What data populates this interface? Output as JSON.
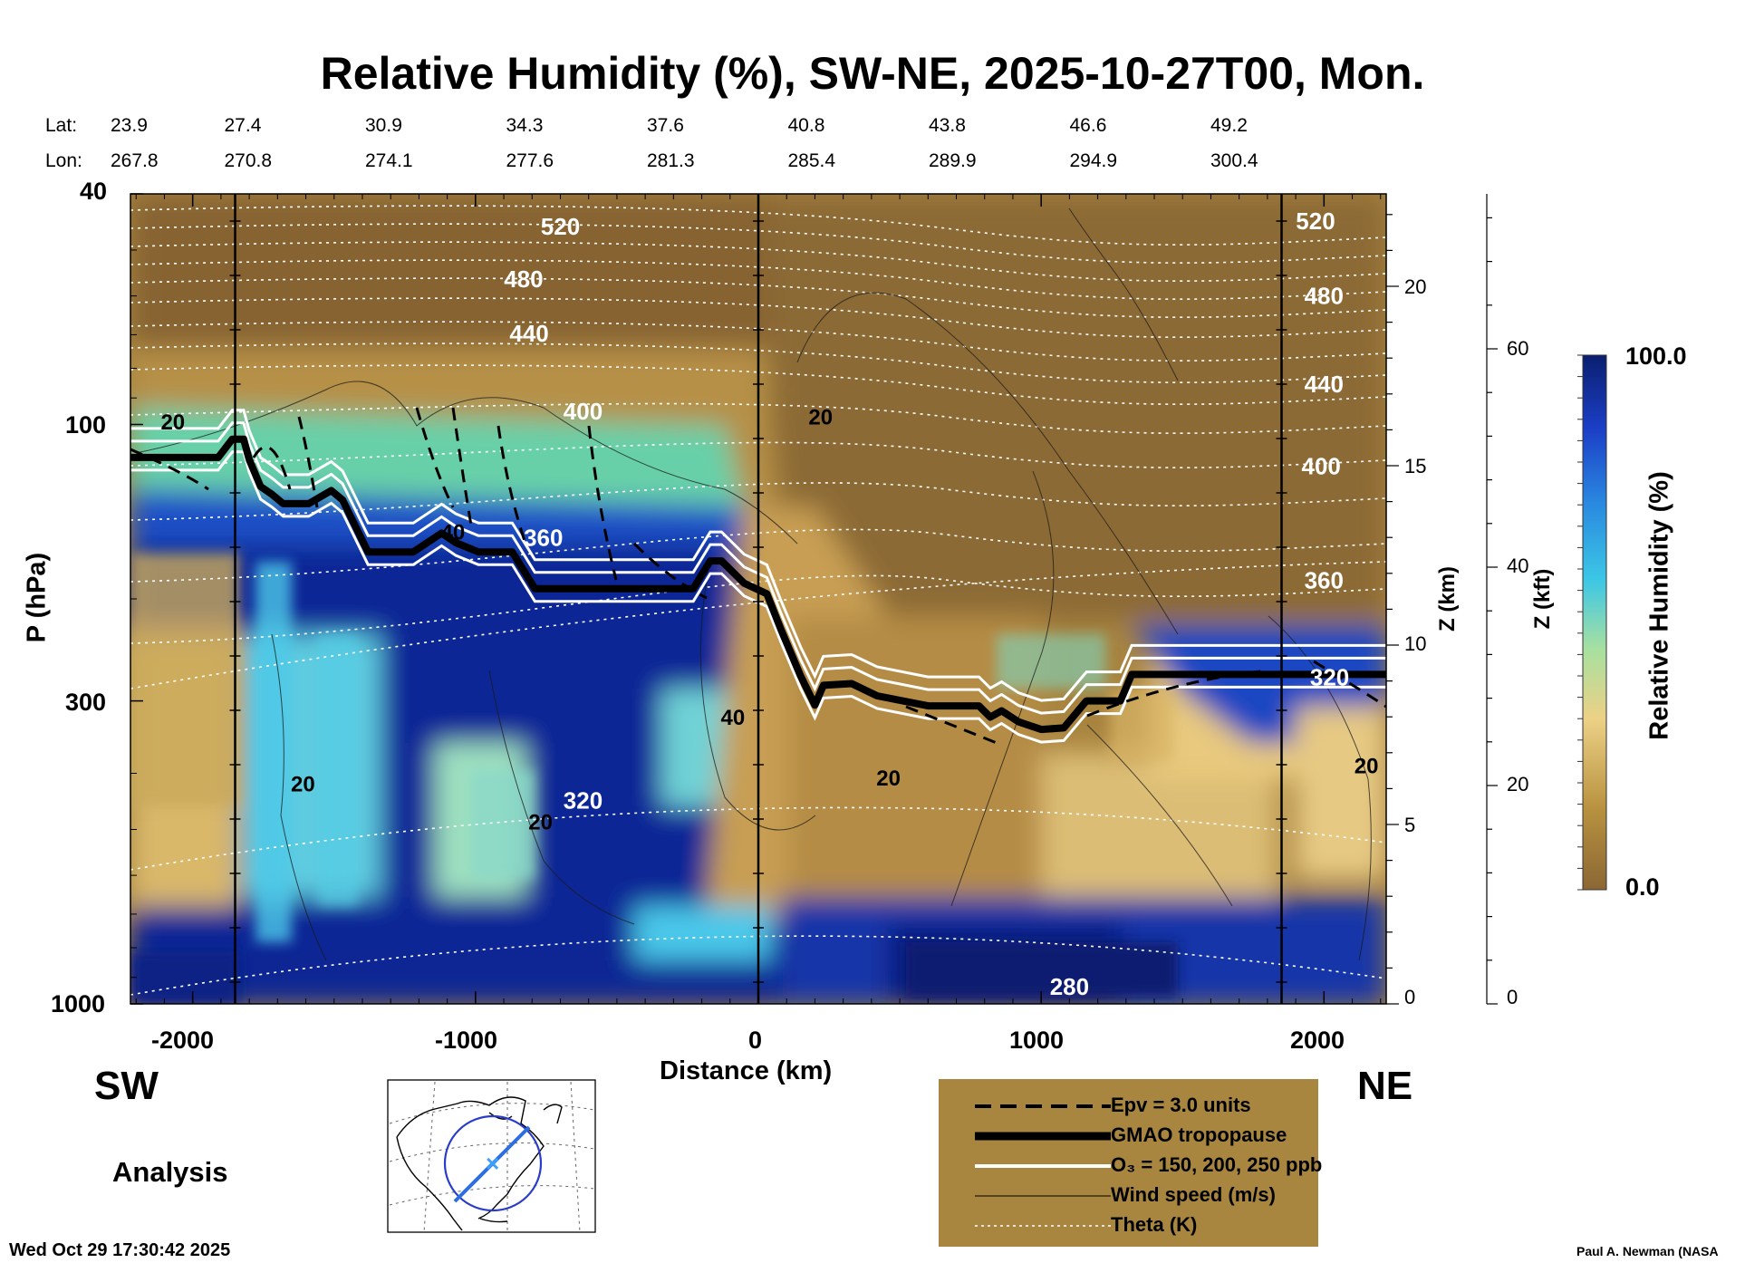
{
  "chart_data": {
    "type": "heatmap",
    "title": "Relative Humidity (%), SW-NE, 2025-10-27T00, Mon.",
    "variable": "Relative Humidity (%)",
    "xlabel": "Distance (km)",
    "ylabel": "P (hPa)",
    "y2label": "Z (km)",
    "y3label": "Z (kft)",
    "xlim": [
      -2220,
      2220
    ],
    "x_ticks": [
      -2000,
      -1000,
      0,
      1000,
      2000
    ],
    "x_tick_labels": [
      "-2000",
      "-1000",
      "0",
      "1000",
      "2000"
    ],
    "ylim": [
      1000,
      40
    ],
    "y_ticks": [
      40,
      100,
      300,
      1000
    ],
    "y_tick_labels": [
      "40",
      "100",
      "300",
      "1000"
    ],
    "z_km_ticks": [
      0,
      5,
      10,
      15,
      20
    ],
    "z_km_tick_labels": [
      "0",
      "5",
      "10",
      "15",
      "20"
    ],
    "z_kft_ticks": [
      0,
      20,
      40,
      60
    ],
    "z_kft_tick_labels": [
      "0",
      "20",
      "40",
      "60"
    ],
    "colorbar": {
      "min_label": "0.0",
      "max_label": "100.0",
      "range": [
        0,
        100
      ],
      "label": "Relative Humidity (%)"
    },
    "lat_label": "Lat:",
    "lon_label": "Lon:",
    "lat_lon": [
      {
        "lat": "23.9",
        "lon": "267.8"
      },
      {
        "lat": "27.4",
        "lon": "270.8"
      },
      {
        "lat": "30.9",
        "lon": "274.1"
      },
      {
        "lat": "34.3",
        "lon": "277.6"
      },
      {
        "lat": "37.6",
        "lon": "281.3"
      },
      {
        "lat": "40.8",
        "lon": "285.4"
      },
      {
        "lat": "43.8",
        "lon": "289.9"
      },
      {
        "lat": "46.6",
        "lon": "294.9"
      },
      {
        "lat": "49.2",
        "lon": "300.4"
      }
    ],
    "vertical_markers_km": [
      -1850,
      0,
      1850
    ],
    "theta_labels": [
      {
        "x": -700,
        "p": 47,
        "text": "520"
      },
      {
        "x": -830,
        "p": 58,
        "text": "480"
      },
      {
        "x": -810,
        "p": 72,
        "text": "440"
      },
      {
        "x": -620,
        "p": 98,
        "text": "400"
      },
      {
        "x": -760,
        "p": 162,
        "text": "360"
      },
      {
        "x": -620,
        "p": 460,
        "text": "320"
      },
      {
        "x": 1100,
        "p": 965,
        "text": "280"
      },
      {
        "x": 1970,
        "p": 46,
        "text": "520"
      },
      {
        "x": 2000,
        "p": 62,
        "text": "480"
      },
      {
        "x": 2000,
        "p": 88,
        "text": "440"
      },
      {
        "x": 1990,
        "p": 122,
        "text": "400"
      },
      {
        "x": 2000,
        "p": 192,
        "text": "360"
      },
      {
        "x": 2020,
        "p": 282,
        "text": "320"
      }
    ],
    "wind_labels": [
      {
        "x": -2070,
        "p": 102,
        "text": "20"
      },
      {
        "x": -1080,
        "p": 158,
        "text": "40"
      },
      {
        "x": 220,
        "p": 100,
        "text": "20"
      },
      {
        "x": -90,
        "p": 330,
        "text": "40"
      },
      {
        "x": -1610,
        "p": 430,
        "text": "20"
      },
      {
        "x": -770,
        "p": 500,
        "text": "20"
      },
      {
        "x": 460,
        "p": 420,
        "text": "20"
      },
      {
        "x": 2150,
        "p": 400,
        "text": "20"
      }
    ],
    "legend": [
      {
        "style": "dashed",
        "label": "Epv = 3.0 units"
      },
      {
        "style": "thick",
        "label": "GMAO tropopause"
      },
      {
        "style": "white",
        "label": "O₃ = 150, 200, 250 ppb"
      },
      {
        "style": "thin",
        "label": "Wind speed (m/s)"
      },
      {
        "style": "dotted",
        "label": "Theta (K)"
      }
    ],
    "tropopause": [
      [
        -2220,
        114
      ],
      [
        -1910,
        114
      ],
      [
        -1860,
        106
      ],
      [
        -1820,
        106
      ],
      [
        -1800,
        115
      ],
      [
        -1760,
        128
      ],
      [
        -1720,
        132
      ],
      [
        -1680,
        137
      ],
      [
        -1590,
        137
      ],
      [
        -1510,
        130
      ],
      [
        -1470,
        135
      ],
      [
        -1430,
        148
      ],
      [
        -1380,
        166
      ],
      [
        -1220,
        166
      ],
      [
        -1120,
        154
      ],
      [
        -1070,
        160
      ],
      [
        -990,
        166
      ],
      [
        -870,
        166
      ],
      [
        -790,
        192
      ],
      [
        -230,
        192
      ],
      [
        -170,
        172
      ],
      [
        -130,
        172
      ],
      [
        -50,
        188
      ],
      [
        30,
        196
      ],
      [
        80,
        226
      ],
      [
        150,
        272
      ],
      [
        200,
        305
      ],
      [
        230,
        282
      ],
      [
        330,
        280
      ],
      [
        420,
        294
      ],
      [
        600,
        306
      ],
      [
        780,
        306
      ],
      [
        820,
        320
      ],
      [
        860,
        312
      ],
      [
        920,
        326
      ],
      [
        1000,
        336
      ],
      [
        1080,
        334
      ],
      [
        1160,
        300
      ],
      [
        1280,
        300
      ],
      [
        1320,
        270
      ],
      [
        2220,
        270
      ]
    ],
    "axis_labels": {
      "sw": "SW",
      "ne": "NE"
    },
    "mode": "Analysis",
    "timestamp": "Wed Oct 29 17:30:42 2025",
    "credit": "Paul A. Newman (NASA"
  },
  "colors": {
    "rh_dry": "#8b6734",
    "rh_mid": "#e6c26e",
    "rh_green": "#7fd9a4",
    "rh_cyan": "#35c6e8",
    "rh_blue": "#1e56c8",
    "rh_wet": "#0a1f80",
    "legend_bg": "#a88640"
  }
}
